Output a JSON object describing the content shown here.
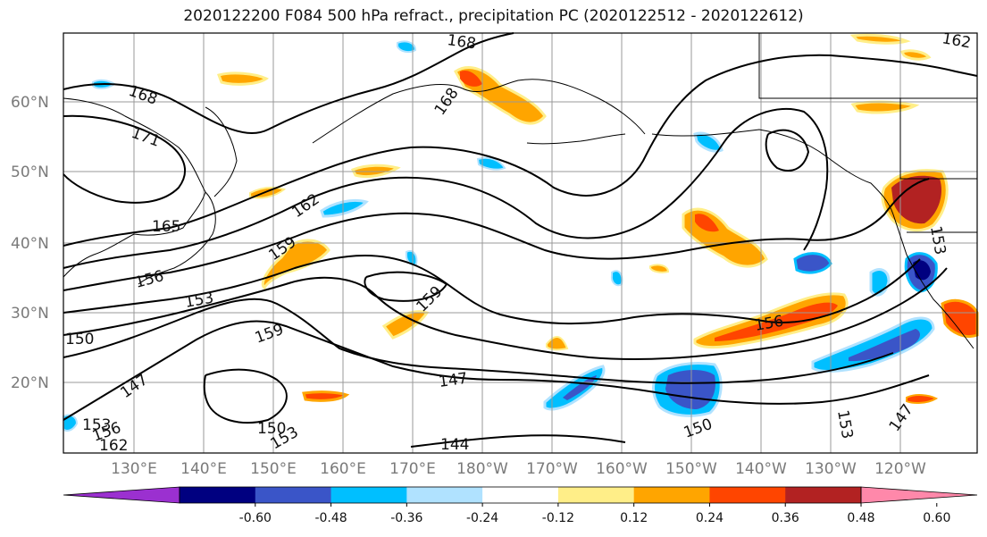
{
  "title": "2020122200 F084 500 hPa refract., precipitation PC (2020122512 - 2020122612)",
  "lat_labels": [
    "60°N",
    "50°N",
    "40°N",
    "30°N",
    "20°N"
  ],
  "lon_labels": [
    "130°E",
    "140°E",
    "150°E",
    "160°E",
    "170°E",
    "180°W",
    "170°W",
    "160°W",
    "150°W",
    "140°W",
    "130°W",
    "120°W"
  ],
  "contour_labels": [
    "168",
    "168",
    "168",
    "171",
    "165",
    "162",
    "159",
    "156",
    "153",
    "150",
    "159",
    "159",
    "147",
    "147",
    "144",
    "150",
    "153",
    "156",
    "162",
    "153",
    "156",
    "150",
    "153",
    "147",
    "153",
    "162"
  ],
  "colorbar": {
    "colors": [
      "#9b30d0",
      "#000080",
      "#3a55c8",
      "#00bfff",
      "#b0e2ff",
      "#ffffff",
      "#ffee88",
      "#ffa500",
      "#ff4500",
      "#b22222",
      "#ff88aa"
    ],
    "tick_labels": [
      "-0.60",
      "-0.48",
      "-0.36",
      "-0.24",
      "-0.12",
      "0.12",
      "0.24",
      "0.36",
      "0.48",
      "0.60"
    ]
  }
}
